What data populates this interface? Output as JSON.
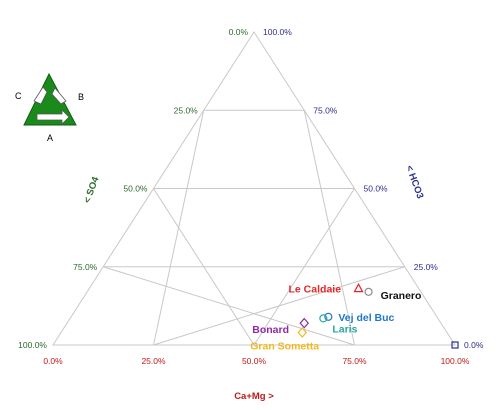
{
  "colors": {
    "grid": "#c8c8c8",
    "left_axis": "#2f6a2f",
    "right_axis": "#2b2f8f",
    "bottom_axis": "#c01818",
    "legend_green": "#1a8a1a"
  },
  "legend": {
    "labels": {
      "a": "A",
      "b": "B",
      "c": "C"
    }
  },
  "chart_data": {
    "type": "scatter",
    "subtype": "ternary",
    "axes": {
      "left": {
        "label": "< SO4",
        "ticks": [
          "0.0%",
          "25.0%",
          "50.0%",
          "75.0%",
          "100.0%"
        ]
      },
      "right": {
        "label": "< HCO3",
        "ticks": [
          "100.0%",
          "75.0%",
          "50.0%",
          "25.0%",
          "0.0%"
        ]
      },
      "bottom": {
        "label": "Ca+Mg >",
        "ticks": [
          "0.0%",
          "25.0%",
          "50.0%",
          "75.0%",
          "100.0%"
        ]
      }
    },
    "grid": true,
    "points": [
      {
        "name": "Le Caldaie",
        "marker": "triangle",
        "color": "#e8262a",
        "camg": 67,
        "so4": 15,
        "hco3": 18
      },
      {
        "name": "Granero",
        "marker": "circle",
        "color": "#8a8a8a",
        "camg": 70,
        "so4": 13,
        "hco3": 17
      },
      {
        "name": "Vej del Buc",
        "marker": "circle",
        "color": "#1f77c8",
        "camg": 64,
        "so4": 27,
        "hco3": 9
      },
      {
        "name": "Laris",
        "marker": "circle",
        "color": "#27a89a",
        "camg": 63,
        "so4": 28.5,
        "hco3": 8.5
      },
      {
        "name": "Bonard",
        "marker": "diamond",
        "color": "#8e2aa6",
        "camg": 59,
        "so4": 34,
        "hco3": 7
      },
      {
        "name": "Gran Sometta",
        "marker": "diamond",
        "color": "#f0b820",
        "camg": 60,
        "so4": 36,
        "hco3": 4
      },
      {
        "name": "",
        "marker": "square",
        "color": "#2b2f8f",
        "camg": 100,
        "so4": 0,
        "hco3": 0
      }
    ]
  }
}
